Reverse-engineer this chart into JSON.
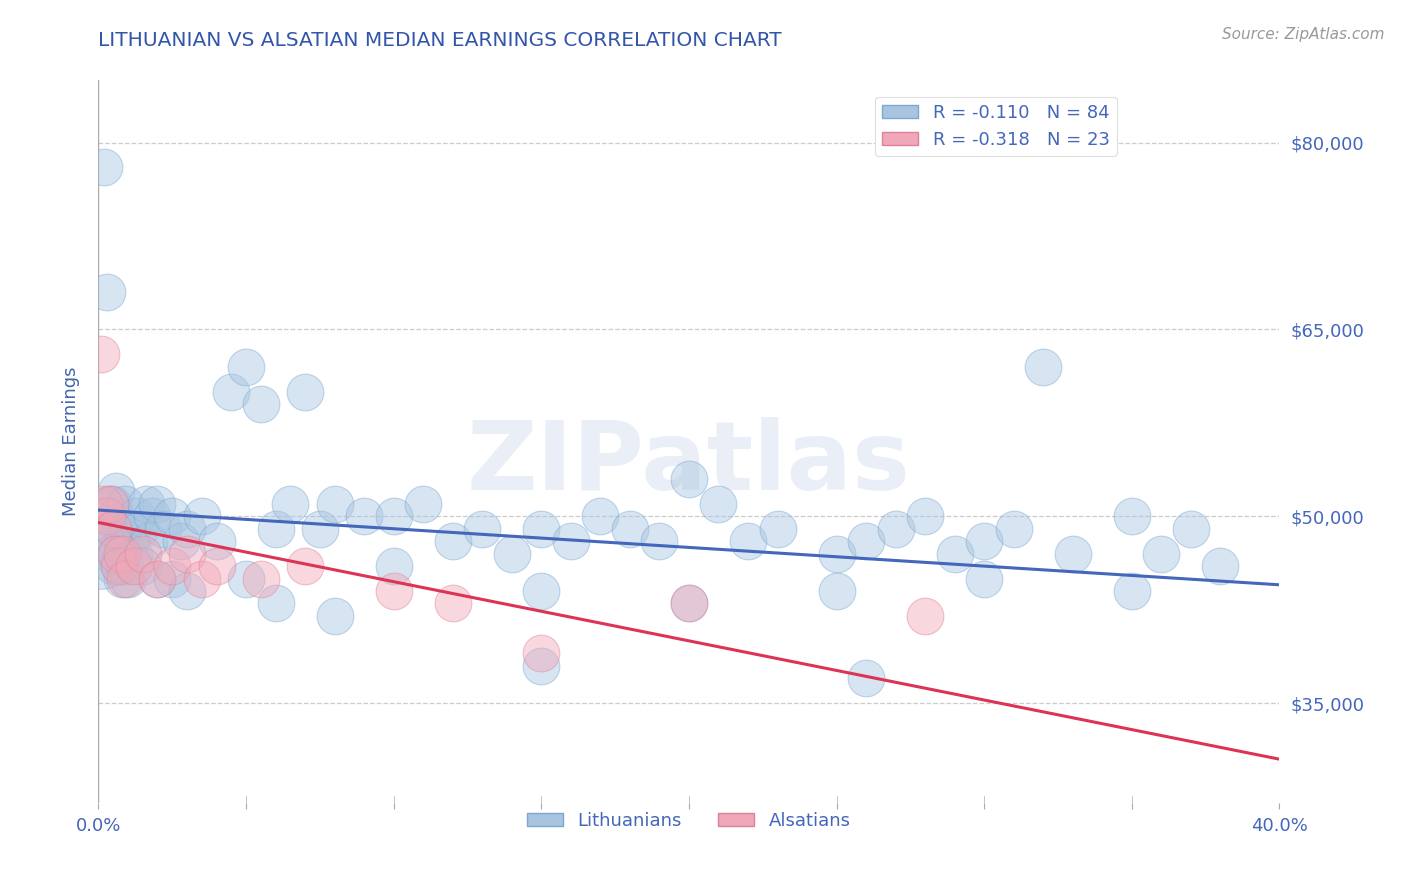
{
  "title": "LITHUANIAN VS ALSATIAN MEDIAN EARNINGS CORRELATION CHART",
  "source_text": "Source: ZipAtlas.com",
  "ylabel": "Median Earnings",
  "xlim": [
    0.0,
    0.4
  ],
  "ylim": [
    27000,
    85000
  ],
  "yticks": [
    35000,
    50000,
    65000,
    80000
  ],
  "ytick_labels": [
    "$35,000",
    "$50,000",
    "$65,000",
    "$80,000"
  ],
  "xticks": [
    0.0,
    0.05,
    0.1,
    0.15,
    0.2,
    0.25,
    0.3,
    0.35,
    0.4
  ],
  "xtick_labels_show": [
    "0.0%",
    "",
    "",
    "",
    "",
    "",
    "",
    "",
    "40.0%"
  ],
  "blue_fill": "#a8c4e0",
  "pink_fill": "#f0a8b8",
  "blue_edge": "#7aa8d0",
  "pink_edge": "#e08098",
  "blue_line_color": "#4466bb",
  "pink_line_color": "#dd3355",
  "R_blue": -0.11,
  "N_blue": 84,
  "R_pink": -0.318,
  "N_pink": 23,
  "legend_label_blue": "Lithuanians",
  "legend_label_pink": "Alsatians",
  "watermark": "ZIPatlas",
  "title_color": "#3355aa",
  "axis_label_color": "#4466aa",
  "tick_color": "#4466bb",
  "grid_color": "#cccccc",
  "background_color": "#ffffff",
  "blue_line_x": [
    0.0,
    0.4
  ],
  "blue_line_y": [
    50500,
    44500
  ],
  "pink_line_x": [
    0.0,
    0.4
  ],
  "pink_line_y": [
    49500,
    30500
  ],
  "blue_x": [
    0.002,
    0.003,
    0.004,
    0.005,
    0.005,
    0.006,
    0.006,
    0.007,
    0.008,
    0.009,
    0.01,
    0.011,
    0.012,
    0.013,
    0.014,
    0.016,
    0.017,
    0.018,
    0.02,
    0.022,
    0.025,
    0.028,
    0.03,
    0.035,
    0.04,
    0.045,
    0.05,
    0.055,
    0.06,
    0.065,
    0.07,
    0.075,
    0.08,
    0.09,
    0.1,
    0.11,
    0.12,
    0.13,
    0.14,
    0.15,
    0.16,
    0.17,
    0.18,
    0.19,
    0.2,
    0.21,
    0.22,
    0.23,
    0.25,
    0.26,
    0.27,
    0.28,
    0.29,
    0.3,
    0.31,
    0.32,
    0.33,
    0.35,
    0.36,
    0.37,
    0.003,
    0.004,
    0.005,
    0.006,
    0.007,
    0.008,
    0.009,
    0.01,
    0.015,
    0.02,
    0.025,
    0.03,
    0.05,
    0.1,
    0.15,
    0.2,
    0.25,
    0.3,
    0.35,
    0.38,
    0.06,
    0.08,
    0.15,
    0.26
  ],
  "blue_y": [
    78000,
    68000,
    51000,
    49000,
    51000,
    50000,
    52000,
    49000,
    48000,
    51000,
    49000,
    48000,
    47000,
    50000,
    49000,
    51000,
    48000,
    50000,
    51000,
    49000,
    50000,
    48000,
    49000,
    50000,
    48000,
    60000,
    62000,
    59000,
    49000,
    51000,
    60000,
    49000,
    51000,
    50000,
    50000,
    51000,
    48000,
    49000,
    47000,
    49000,
    48000,
    50000,
    49000,
    48000,
    53000,
    51000,
    48000,
    49000,
    47000,
    48000,
    49000,
    50000,
    47000,
    48000,
    49000,
    62000,
    47000,
    50000,
    47000,
    49000,
    48000,
    47000,
    46000,
    47000,
    46000,
    45000,
    46000,
    45000,
    46000,
    45000,
    45000,
    44000,
    45000,
    46000,
    44000,
    43000,
    44000,
    45000,
    44000,
    46000,
    43000,
    42000,
    38000,
    37000
  ],
  "pink_x": [
    0.001,
    0.002,
    0.003,
    0.004,
    0.005,
    0.006,
    0.007,
    0.008,
    0.009,
    0.012,
    0.015,
    0.02,
    0.025,
    0.03,
    0.035,
    0.04,
    0.055,
    0.07,
    0.1,
    0.12,
    0.15,
    0.2,
    0.28
  ],
  "pink_y": [
    63000,
    51000,
    50000,
    51000,
    49000,
    47000,
    46000,
    47000,
    45000,
    46000,
    47000,
    45000,
    46000,
    47000,
    45000,
    46000,
    45000,
    46000,
    44000,
    43000,
    39000,
    43000,
    42000
  ],
  "dot_size": 700,
  "dot_alpha": 0.45,
  "large_blue_x": [
    0.001
  ],
  "large_blue_y": [
    47000
  ],
  "large_blue_s": [
    2500
  ]
}
